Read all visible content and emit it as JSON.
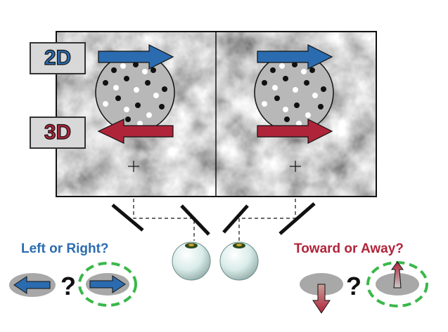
{
  "labels": {
    "two_d": "2D",
    "three_d": "3D",
    "left_right_question": "Left or Right?",
    "toward_away_question": "Toward or Away?",
    "question_mark": "?"
  },
  "colors": {
    "blue": "#2b6cb0",
    "red": "#b0243a",
    "dashed_green": "#3ab84a",
    "sphere_fill": "#b8b8b8",
    "gray_oval": "#a8a8a8"
  },
  "icons": {
    "two_d_arrow": "right-arrow-icon",
    "three_d_left_arrow": "left-arrow-icon",
    "three_d_right_arrow": "right-arrow-icon",
    "eye": "eyeball-icon",
    "fixation": "fixation-cross-icon"
  }
}
